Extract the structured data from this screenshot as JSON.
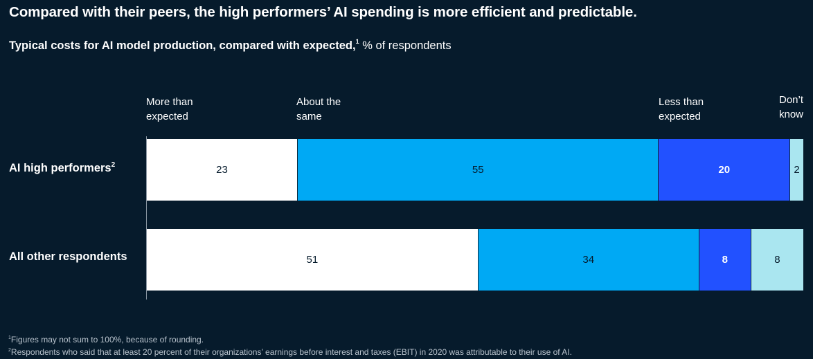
{
  "title": "Compared with their peers, the high performers’ AI spending is more efficient and predictable.",
  "subtitle": {
    "bold": "Typical costs for AI model production, compared with expected,",
    "sup": "1",
    "rest": "% of respondents"
  },
  "categories_labels": {
    "more": [
      "More than",
      "expected"
    ],
    "same": [
      "About the",
      "same"
    ],
    "less": [
      "Less than",
      "expected"
    ],
    "dk": [
      "Don’t",
      "know"
    ]
  },
  "colors": {
    "background": "#061b2c",
    "more": "#ffffff",
    "same": "#00a9f4",
    "less": "#2251ff",
    "dk": "#aae6f0"
  },
  "chart_data": {
    "type": "bar",
    "orientation": "horizontal-stacked",
    "categories": [
      "AI high performers",
      "All other respondents"
    ],
    "series": [
      {
        "name": "More than expected",
        "values": [
          23,
          51
        ]
      },
      {
        "name": "About the same",
        "values": [
          55,
          34
        ]
      },
      {
        "name": "Less than expected",
        "values": [
          20,
          8
        ]
      },
      {
        "name": "Don’t know",
        "values": [
          2,
          8
        ]
      }
    ],
    "title": "Compared with their peers, the high performers’ AI spending is more efficient and predictable.",
    "subtitle": "Typical costs for AI model production, compared with expected,1 % of respondents",
    "xlim": [
      0,
      100
    ],
    "legend": "top"
  },
  "rows": [
    {
      "label": "AI high performers",
      "sup": "2"
    },
    {
      "label": "All other respondents",
      "sup": ""
    }
  ],
  "footnotes": [
    {
      "sup": "1",
      "text": "Figures may not sum to 100%, because of rounding."
    },
    {
      "sup": "2",
      "text": "Respondents who said that at least 20 percent of their organizations’ earnings before interest and taxes (EBIT) in 2020 was attributable to their use of AI."
    }
  ]
}
